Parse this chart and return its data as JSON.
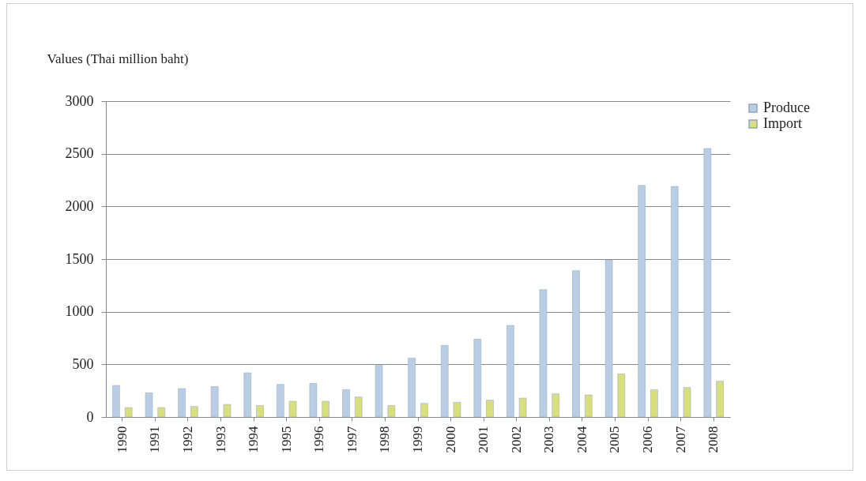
{
  "chart_data": {
    "type": "bar",
    "ylabel": "Values (Thai million baht)",
    "categories": [
      "1990",
      "1991",
      "1992",
      "1993",
      "1994",
      "1995",
      "1996",
      "1997",
      "1998",
      "1999",
      "2000",
      "2001",
      "2002",
      "2003",
      "2004",
      "2005",
      "2006",
      "2007",
      "2008"
    ],
    "series": [
      {
        "name": "Produce",
        "color": "#b9cde5",
        "values": [
          300,
          230,
          270,
          290,
          420,
          310,
          320,
          260,
          490,
          560,
          680,
          740,
          870,
          1210,
          1390,
          1490,
          2200,
          2190,
          2550
        ]
      },
      {
        "name": "Import",
        "color": "#d8df7c",
        "values": [
          90,
          90,
          100,
          120,
          110,
          150,
          150,
          190,
          110,
          130,
          140,
          160,
          180,
          220,
          210,
          410,
          260,
          280,
          340
        ]
      }
    ],
    "ylim": [
      0,
      3000
    ],
    "yticks": [
      0,
      500,
      1000,
      1500,
      2000,
      2500,
      3000
    ],
    "grid": "y",
    "legend": "right"
  }
}
